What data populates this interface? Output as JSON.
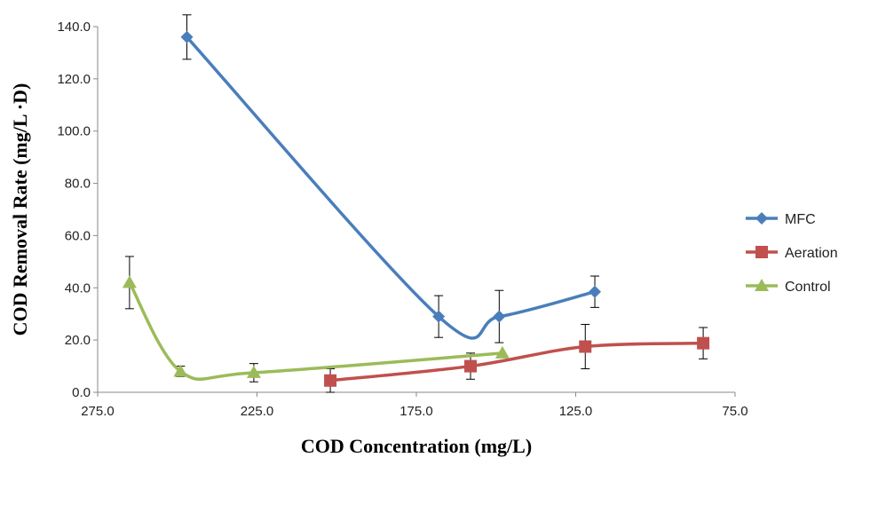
{
  "chart_data": {
    "type": "line",
    "title": "",
    "xlabel": "COD Concentration (mg/L)",
    "ylabel": "COD Removal Rate (mg/L ·D)",
    "xlim": [
      275.0,
      75.0
    ],
    "ylim": [
      0.0,
      140.0
    ],
    "x_reversed": true,
    "x_ticks": [
      "275.0",
      "225.0",
      "175.0",
      "125.0",
      "75.0"
    ],
    "y_ticks": [
      "0.0",
      "20.0",
      "40.0",
      "60.0",
      "80.0",
      "100.0",
      "120.0",
      "140.0"
    ],
    "grid": false,
    "legend_position": "right",
    "series": [
      {
        "name": "MFC",
        "color": "#4A7EBB",
        "marker": "diamond",
        "points": [
          {
            "x": 247.0,
            "y": 136.0,
            "err": 8.5
          },
          {
            "x": 168.0,
            "y": 29.0,
            "err": 8.0
          },
          {
            "x": 149.0,
            "y": 29.0,
            "err": 10.0
          },
          {
            "x": 119.0,
            "y": 38.5,
            "err": 6.0
          }
        ]
      },
      {
        "name": "Aeration",
        "color": "#C0504D",
        "marker": "square",
        "points": [
          {
            "x": 202.0,
            "y": 4.5,
            "err": 4.5
          },
          {
            "x": 158.0,
            "y": 10.0,
            "err": 5.0
          },
          {
            "x": 122.0,
            "y": 17.5,
            "err": 8.5
          },
          {
            "x": 85.0,
            "y": 18.8,
            "err": 6.0
          }
        ]
      },
      {
        "name": "Control",
        "color": "#9BBB59",
        "marker": "triangle",
        "points": [
          {
            "x": 265.0,
            "y": 42.0,
            "err": 10.0
          },
          {
            "x": 249.0,
            "y": 8.0,
            "err": 2.0
          },
          {
            "x": 226.0,
            "y": 7.5,
            "err": 3.5
          },
          {
            "x": 148.0,
            "y": 15.0,
            "err": 0.0
          }
        ]
      }
    ]
  }
}
